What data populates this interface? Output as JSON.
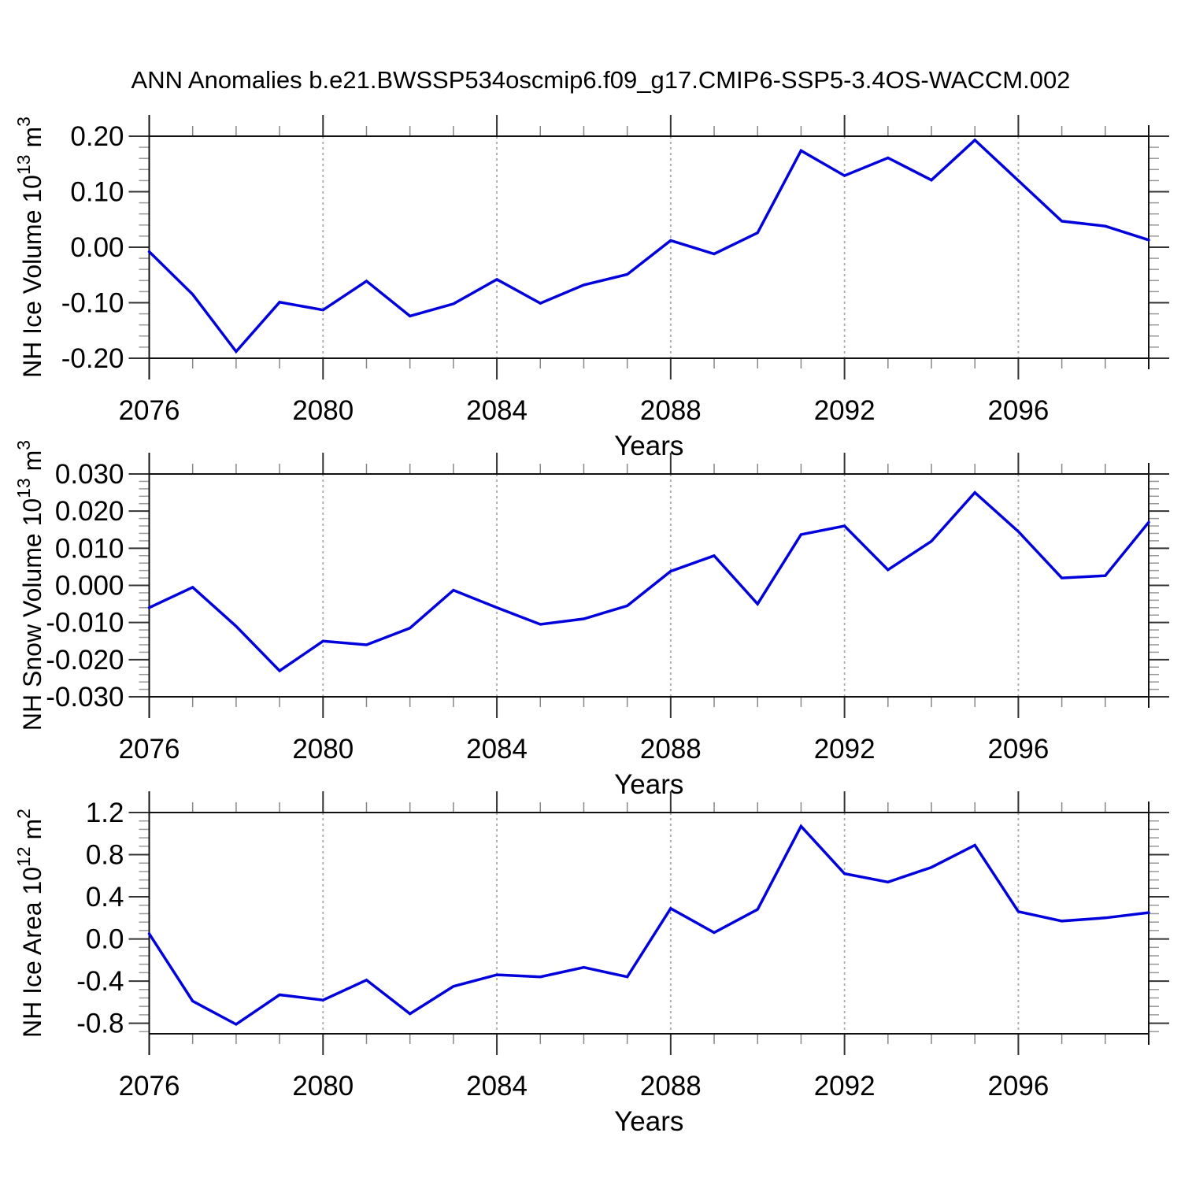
{
  "title": "ANN Anomalies b.e21.BWSSP534oscmip6.f09_g17.CMIP6-SSP5-3.4OS-WACCM.002",
  "line_color": "#0000dd",
  "grid_color": "#aaaaaa",
  "axis_color": "#111111",
  "chart_data": [
    {
      "type": "line",
      "name": "nh-ice-volume",
      "ylabel_main": "NH Ice Volume 10",
      "ylabel_exp": "13",
      "ylabel_unit": " m",
      "ylabel_unit_exp": "3",
      "xlabel": "Years",
      "x": [
        2076,
        2077,
        2078,
        2079,
        2080,
        2081,
        2082,
        2083,
        2084,
        2085,
        2086,
        2087,
        2088,
        2089,
        2090,
        2091,
        2092,
        2093,
        2094,
        2095,
        2096,
        2097,
        2098,
        2099
      ],
      "values": [
        -0.008,
        -0.085,
        -0.188,
        -0.099,
        -0.113,
        -0.061,
        -0.124,
        -0.102,
        -0.058,
        -0.101,
        -0.068,
        -0.049,
        0.012,
        -0.012,
        0.026,
        0.174,
        0.129,
        0.161,
        0.121,
        0.193,
        0.12,
        0.047,
        0.038,
        0.013
      ],
      "xlim": [
        2076,
        2099
      ],
      "ylim": [
        -0.2,
        0.2
      ],
      "yticks": [
        0.2,
        0.1,
        0.0,
        -0.1,
        -0.2
      ],
      "ytick_labels": [
        "0.20",
        "0.10",
        "0.00",
        "-0.10",
        "-0.20"
      ],
      "xticks": [
        2076,
        2080,
        2084,
        2088,
        2092,
        2096
      ],
      "xtick_labels": [
        "2076",
        "2080",
        "2084",
        "2088",
        "2092",
        "2096"
      ],
      "xgrid": [
        2080,
        2084,
        2088,
        2092,
        2096
      ],
      "grid": "vertical-dashed",
      "legend": null
    },
    {
      "type": "line",
      "name": "nh-snow-volume",
      "ylabel_main": "NH Snow Volume 10",
      "ylabel_exp": "13",
      "ylabel_unit": " m",
      "ylabel_unit_exp": "3",
      "xlabel": "Years",
      "x": [
        2076,
        2077,
        2078,
        2079,
        2080,
        2081,
        2082,
        2083,
        2084,
        2085,
        2086,
        2087,
        2088,
        2089,
        2090,
        2091,
        2092,
        2093,
        2094,
        2095,
        2096,
        2097,
        2098,
        2099
      ],
      "values": [
        -0.006,
        -0.0005,
        -0.011,
        -0.023,
        -0.015,
        -0.016,
        -0.0115,
        -0.0013,
        -0.006,
        -0.0105,
        -0.009,
        -0.0055,
        0.0038,
        0.008,
        -0.005,
        0.0137,
        0.016,
        0.0042,
        0.0119,
        0.025,
        0.0145,
        0.002,
        0.0026,
        0.017
      ],
      "xlim": [
        2076,
        2099
      ],
      "ylim": [
        -0.03,
        0.03
      ],
      "yticks": [
        0.03,
        0.02,
        0.01,
        0.0,
        -0.01,
        -0.02,
        -0.03
      ],
      "ytick_labels": [
        "0.030",
        "0.020",
        "0.010",
        "0.000",
        "-0.010",
        "-0.020",
        "-0.030"
      ],
      "xticks": [
        2076,
        2080,
        2084,
        2088,
        2092,
        2096
      ],
      "xtick_labels": [
        "2076",
        "2080",
        "2084",
        "2088",
        "2092",
        "2096"
      ],
      "xgrid": [
        2080,
        2084,
        2088,
        2092,
        2096
      ],
      "grid": "vertical-dashed",
      "legend": null
    },
    {
      "type": "line",
      "name": "nh-ice-area",
      "ylabel_main": "NH Ice Area 10",
      "ylabel_exp": "12",
      "ylabel_unit": " m",
      "ylabel_unit_exp": "2",
      "xlabel": "Years",
      "x": [
        2076,
        2077,
        2078,
        2079,
        2080,
        2081,
        2082,
        2083,
        2084,
        2085,
        2086,
        2087,
        2088,
        2089,
        2090,
        2091,
        2092,
        2093,
        2094,
        2095,
        2096,
        2097,
        2098,
        2099
      ],
      "values": [
        0.05,
        -0.59,
        -0.81,
        -0.53,
        -0.58,
        -0.39,
        -0.71,
        -0.45,
        -0.34,
        -0.36,
        -0.27,
        -0.36,
        0.29,
        0.06,
        0.28,
        1.07,
        0.62,
        0.54,
        0.68,
        0.89,
        0.26,
        0.17,
        0.2,
        0.25
      ],
      "xlim": [
        2076,
        2099
      ],
      "ylim": [
        -0.9,
        1.2
      ],
      "yticks": [
        1.2,
        0.8,
        0.4,
        0.0,
        -0.4,
        -0.8
      ],
      "ytick_labels": [
        "1.2",
        "0.8",
        "0.4",
        "0.0",
        "-0.4",
        "-0.8"
      ],
      "xticks": [
        2076,
        2080,
        2084,
        2088,
        2092,
        2096
      ],
      "xtick_labels": [
        "2076",
        "2080",
        "2084",
        "2088",
        "2092",
        "2096"
      ],
      "xgrid": [
        2080,
        2084,
        2088,
        2092,
        2096
      ],
      "grid": "vertical-dashed",
      "legend": null
    }
  ]
}
